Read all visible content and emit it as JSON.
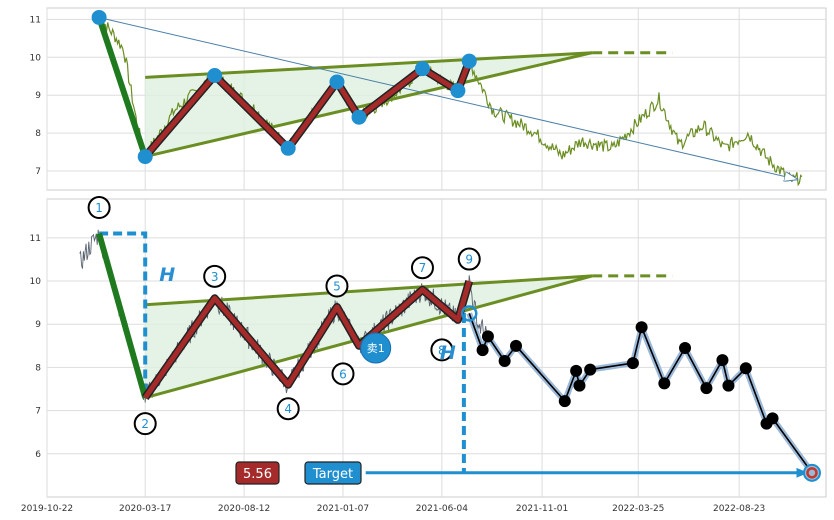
{
  "chart_data": {
    "type": "line",
    "x_ticks": [
      "2019-10-22",
      "2020-03-17",
      "2020-08-12",
      "2021-01-07",
      "2021-06-04",
      "2021-11-01",
      "2022-03-25",
      "2022-08-23"
    ],
    "top_panel": {
      "yticks": [
        7,
        8,
        9,
        10,
        11
      ],
      "ylim": [
        6.5,
        11.3
      ],
      "zigzag": [
        {
          "date": "2020-01-08",
          "value": 11.05
        },
        {
          "date": "2020-03-17",
          "value": 7.38
        },
        {
          "date": "2020-06-29",
          "value": 9.52
        },
        {
          "date": "2020-10-17",
          "value": 7.6
        },
        {
          "date": "2020-12-29",
          "value": 9.35
        },
        {
          "date": "2021-01-31",
          "value": 8.42
        },
        {
          "date": "2021-05-06",
          "value": 9.7
        },
        {
          "date": "2021-06-28",
          "value": 9.12
        },
        {
          "date": "2021-07-15",
          "value": 9.9
        }
      ],
      "triangle_upper": [
        {
          "date": "2020-03-17",
          "value": 9.47
        },
        {
          "date": "2022-01-15",
          "value": 10.12
        }
      ],
      "triangle_lower": [
        {
          "date": "2020-03-17",
          "value": 7.38
        },
        {
          "date": "2022-01-15",
          "value": 10.12
        }
      ],
      "dash_extension": [
        {
          "date": "2022-01-15",
          "value": 10.12
        },
        {
          "date": "2022-05-15",
          "value": 10.12
        }
      ],
      "trend_arrow": [
        {
          "date": "2020-01-08",
          "value": 11.05
        },
        {
          "date": "2022-11-18",
          "value": 6.78
        }
      ],
      "price_path": [
        {
          "date": "2020-01-08",
          "value": 11.05
        },
        {
          "date": "2020-01-30",
          "value": 10.6
        },
        {
          "date": "2020-02-14",
          "value": 10.2
        },
        {
          "date": "2020-03-05",
          "value": 8.2
        },
        {
          "date": "2020-03-17",
          "value": 7.38
        },
        {
          "date": "2020-04-30",
          "value": 8.6
        },
        {
          "date": "2020-06-29",
          "value": 9.52
        },
        {
          "date": "2020-08-30",
          "value": 8.6
        },
        {
          "date": "2020-10-17",
          "value": 7.6
        },
        {
          "date": "2020-12-29",
          "value": 9.35
        },
        {
          "date": "2021-01-31",
          "value": 8.42
        },
        {
          "date": "2021-03-30",
          "value": 9.1
        },
        {
          "date": "2021-05-06",
          "value": 9.7
        },
        {
          "date": "2021-06-28",
          "value": 9.12
        },
        {
          "date": "2021-07-15",
          "value": 9.9
        },
        {
          "date": "2021-08-20",
          "value": 8.6
        },
        {
          "date": "2021-10-15",
          "value": 8.1
        },
        {
          "date": "2021-12-01",
          "value": 7.4
        },
        {
          "date": "2021-12-30",
          "value": 7.8
        },
        {
          "date": "2022-02-15",
          "value": 7.6
        },
        {
          "date": "2022-03-25",
          "value": 8.3
        },
        {
          "date": "2022-04-25",
          "value": 8.9
        },
        {
          "date": "2022-05-25",
          "value": 7.7
        },
        {
          "date": "2022-06-30",
          "value": 8.2
        },
        {
          "date": "2022-08-01",
          "value": 7.6
        },
        {
          "date": "2022-09-05",
          "value": 8.0
        },
        {
          "date": "2022-10-05",
          "value": 7.3
        },
        {
          "date": "2022-11-10",
          "value": 6.75
        },
        {
          "date": "2022-11-25",
          "value": 6.85
        }
      ]
    },
    "bottom_panel": {
      "yticks": [
        6,
        7,
        8,
        9,
        10,
        11
      ],
      "ylim": [
        5.0,
        11.9
      ],
      "waves": [
        {
          "label": "1",
          "date": "2020-01-08",
          "value": 11.1
        },
        {
          "label": "2",
          "date": "2020-03-17",
          "value": 7.3
        },
        {
          "label": "3",
          "date": "2020-06-29",
          "value": 9.6
        },
        {
          "label": "4",
          "date": "2020-10-17",
          "value": 7.6
        },
        {
          "label": "5",
          "date": "2020-12-29",
          "value": 9.4
        },
        {
          "label": "6",
          "date": "2021-01-31",
          "value": 8.5
        },
        {
          "label": "7",
          "date": "2021-05-06",
          "value": 9.8
        },
        {
          "label": "8",
          "date": "2021-06-28",
          "value": 9.1
        },
        {
          "label": "9",
          "date": "2021-07-15",
          "value": 10.0
        }
      ],
      "triangle_upper": [
        {
          "date": "2020-03-17",
          "value": 9.45
        },
        {
          "date": "2022-01-15",
          "value": 10.12
        }
      ],
      "triangle_lower": [
        {
          "date": "2020-03-17",
          "value": 7.3
        },
        {
          "date": "2022-01-15",
          "value": 10.12
        }
      ],
      "dash_extension": [
        {
          "date": "2022-01-15",
          "value": 10.12
        },
        {
          "date": "2022-05-15",
          "value": 10.12
        }
      ],
      "forecast_path": [
        {
          "date": "2021-07-15",
          "value": 9.25
        },
        {
          "date": "2021-08-04",
          "value": 8.4
        },
        {
          "date": "2021-08-12",
          "value": 8.72
        },
        {
          "date": "2021-09-06",
          "value": 8.15
        },
        {
          "date": "2021-09-23",
          "value": 8.5
        },
        {
          "date": "2021-12-05",
          "value": 7.22
        },
        {
          "date": "2021-12-22",
          "value": 7.92
        },
        {
          "date": "2021-12-27",
          "value": 7.58
        },
        {
          "date": "2022-01-12",
          "value": 7.95
        },
        {
          "date": "2022-03-17",
          "value": 8.1
        },
        {
          "date": "2022-03-30",
          "value": 8.93
        },
        {
          "date": "2022-05-03",
          "value": 7.63
        },
        {
          "date": "2022-06-03",
          "value": 8.45
        },
        {
          "date": "2022-07-05",
          "value": 7.52
        },
        {
          "date": "2022-07-29",
          "value": 8.17
        },
        {
          "date": "2022-08-07",
          "value": 7.58
        },
        {
          "date": "2022-09-02",
          "value": 7.98
        },
        {
          "date": "2022-10-03",
          "value": 6.7
        },
        {
          "date": "2022-10-12",
          "value": 6.82
        },
        {
          "date": "2022-12-10",
          "value": 5.56
        }
      ],
      "h_marker_left": {
        "date": "2020-03-17",
        "top": 11.1,
        "bottom": 7.3
      },
      "h_marker_right": {
        "date": "2021-07-07",
        "top": 9.22,
        "bottom": 5.56
      },
      "sell_marker": {
        "label": "卖1",
        "date": "2021-02-25",
        "value": 8.45
      },
      "target_arrow": [
        {
          "date": "2021-02-10",
          "value": 5.56
        },
        {
          "date": "2022-12-03",
          "value": 5.56
        }
      ],
      "target_point": {
        "date": "2022-12-10",
        "value": 5.56
      }
    },
    "annotations": {
      "h_label": "H",
      "value_badge": "5.56",
      "target_badge": "Target"
    },
    "colors": {
      "green": "#6b8e23",
      "dark_green": "#1f7a1f",
      "wave_red": "#a52a2a",
      "blue_point": "#1f8fd0",
      "price_bottom": "#5a6470",
      "forecast": "#000000",
      "forecast_halo": "#9bb8d8",
      "badge_red": "#a52a2a",
      "badge_blue": "#1f8fd0",
      "triangle_fill": "#dff0e0"
    }
  }
}
